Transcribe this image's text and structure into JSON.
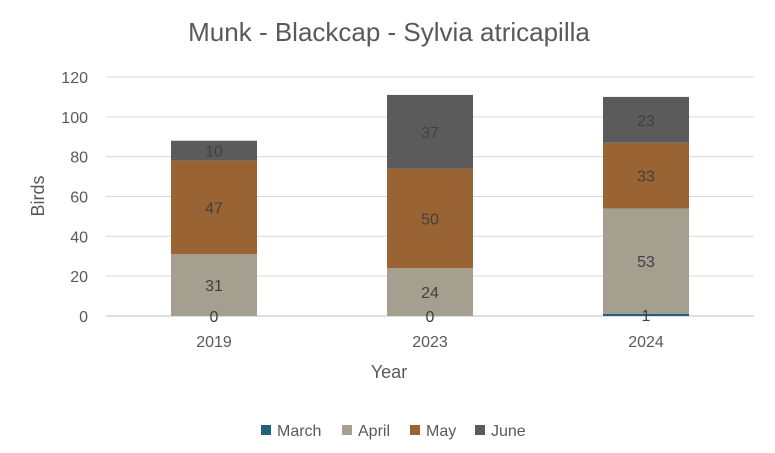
{
  "chart_data": {
    "type": "bar",
    "stacked": true,
    "title": "Munk - Blackcap - Sylvia atricapilla",
    "xlabel": "Year",
    "ylabel": "Birds",
    "categories": [
      "2019",
      "2023",
      "2024"
    ],
    "series": [
      {
        "name": "March",
        "values": [
          0,
          0,
          1
        ],
        "color": "#1f5f80"
      },
      {
        "name": "April",
        "values": [
          31,
          24,
          53
        ],
        "color": "#a59f90"
      },
      {
        "name": "May",
        "values": [
          47,
          50,
          33
        ],
        "color": "#9a6333"
      },
      {
        "name": "June",
        "values": [
          10,
          37,
          23
        ],
        "color": "#5b5b5b"
      }
    ],
    "ylim": [
      0,
      120
    ],
    "yticks": [
      0,
      20,
      40,
      60,
      80,
      100,
      120
    ],
    "grid": true,
    "legend": "bottom"
  }
}
